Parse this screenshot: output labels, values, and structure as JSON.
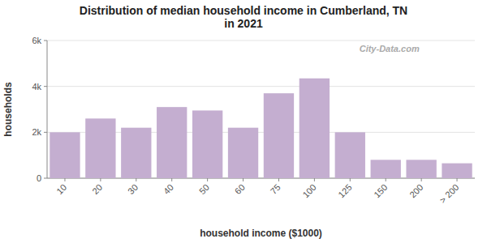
{
  "chart_data": {
    "type": "bar",
    "title": "Distribution of median household income in Cumberland, TN\nin 2021",
    "x_label": "household income ($1000)",
    "y_label": "households",
    "categories": [
      "10",
      "20",
      "30",
      "40",
      "50",
      "60",
      "75",
      "100",
      "125",
      "150",
      "200",
      "> 200"
    ],
    "values": [
      2000,
      2600,
      2200,
      3100,
      2950,
      2200,
      3700,
      4350,
      2000,
      800,
      800,
      650
    ],
    "color": "#c4aed0",
    "ylim": [
      0,
      6000
    ],
    "yticks": [
      0,
      {
        "value": 2000,
        "label": "2k"
      },
      {
        "value": 4000,
        "label": "4k"
      },
      {
        "value": 6000,
        "label": "6k"
      }
    ],
    "grid": true,
    "annotations": [
      "City-Data.com"
    ]
  }
}
